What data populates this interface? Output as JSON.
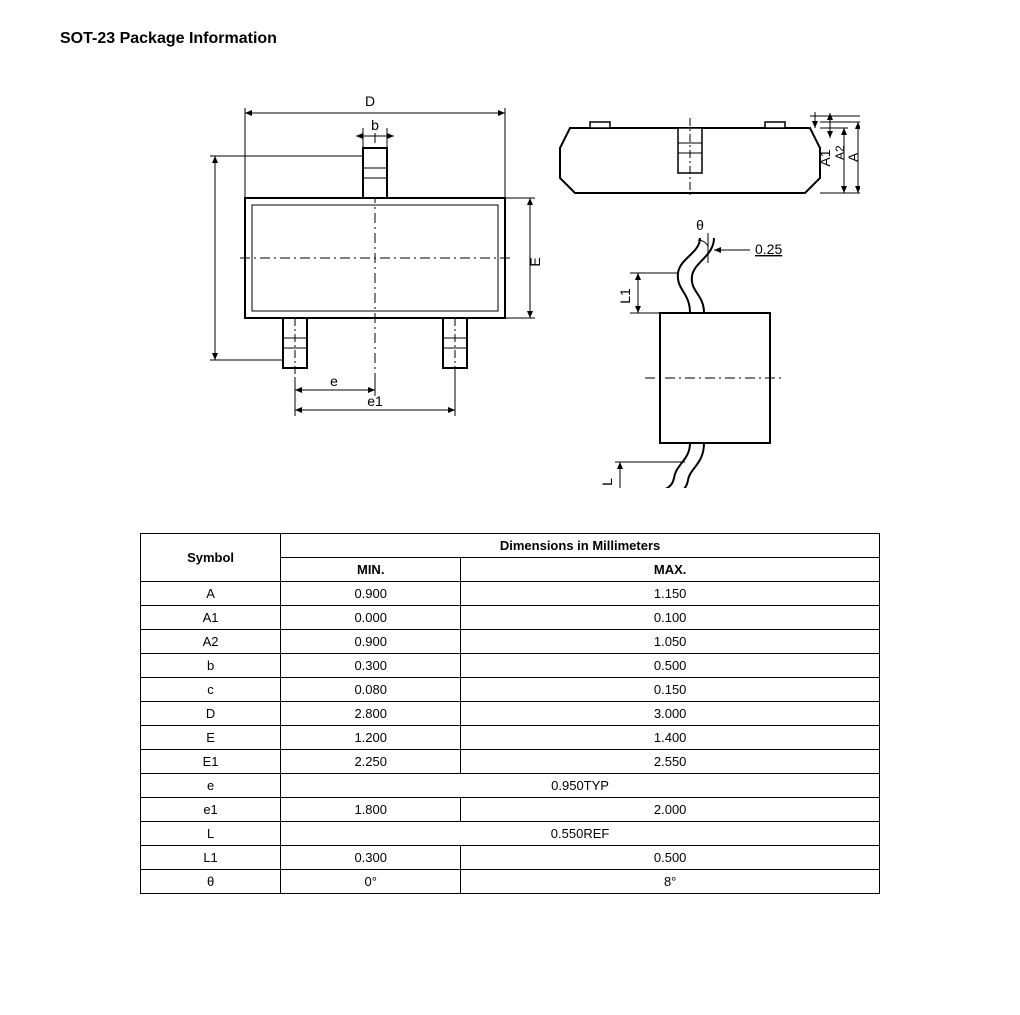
{
  "title": "SOT-23 Package Information",
  "diagram": {
    "labels": {
      "D": "D",
      "b": "b",
      "E": "E",
      "e": "e",
      "e1": "e1",
      "A": "A",
      "A1": "A1",
      "A2": "A2",
      "theta": "θ",
      "L": "L",
      "L1": "L1",
      "c": "c",
      "val025": "0.25"
    },
    "stroke_color": "#000000",
    "stroke_width": 1.5,
    "fill_color": "#ffffff"
  },
  "table": {
    "header_symbol": "Symbol",
    "header_dims": "Dimensions in Millimeters",
    "header_min": "MIN.",
    "header_max": "MAX.",
    "rows": [
      {
        "sym": "A",
        "min": "0.900",
        "max": "1.150",
        "span": false
      },
      {
        "sym": "A1",
        "min": "0.000",
        "max": "0.100",
        "span": false
      },
      {
        "sym": "A2",
        "min": "0.900",
        "max": "1.050",
        "span": false
      },
      {
        "sym": "b",
        "min": "0.300",
        "max": "0.500",
        "span": false
      },
      {
        "sym": "c",
        "min": "0.080",
        "max": "0.150",
        "span": false
      },
      {
        "sym": "D",
        "min": "2.800",
        "max": "3.000",
        "span": false
      },
      {
        "sym": "E",
        "min": "1.200",
        "max": "1.400",
        "span": false
      },
      {
        "sym": "E1",
        "min": "2.250",
        "max": "2.550",
        "span": false
      },
      {
        "sym": "e",
        "min": "0.950TYP",
        "max": "",
        "span": true
      },
      {
        "sym": "e1",
        "min": "1.800",
        "max": "2.000",
        "span": false
      },
      {
        "sym": "L",
        "min": "0.550REF",
        "max": "",
        "span": true
      },
      {
        "sym": "L1",
        "min": "0.300",
        "max": "0.500",
        "span": false
      },
      {
        "sym": "θ",
        "min": "0°",
        "max": "8°",
        "span": false
      }
    ]
  }
}
